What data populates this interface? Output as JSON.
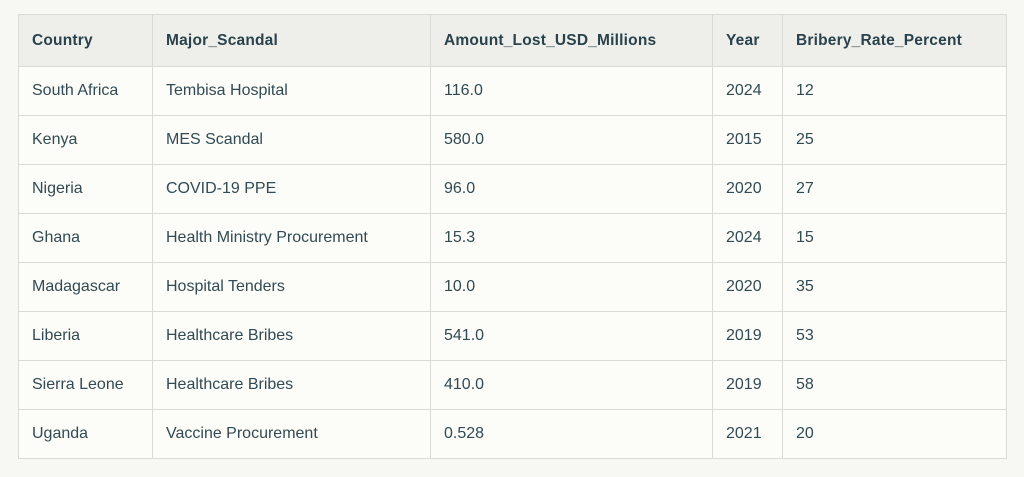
{
  "colors": {
    "page_bg": "#f7f7f3",
    "header_bg": "#eeeeea",
    "row_bg": "#fcfcf8",
    "border": "#dbdbd6",
    "header_text": "#29424c",
    "body_text": "#324a53"
  },
  "chart_data": {
    "type": "table",
    "columns": [
      "Country",
      "Major_Scandal",
      "Amount_Lost_USD_Millions",
      "Year",
      "Bribery_Rate_Percent"
    ],
    "column_keys": [
      "country",
      "scandal",
      "amount",
      "year",
      "bribery"
    ],
    "rows": [
      [
        "South Africa",
        "Tembisa Hospital",
        "116.0",
        "2024",
        "12"
      ],
      [
        "Kenya",
        "MES Scandal",
        "580.0",
        "2015",
        "25"
      ],
      [
        "Nigeria",
        "COVID-19 PPE",
        "96.0",
        "2020",
        "27"
      ],
      [
        "Ghana",
        "Health Ministry Procurement",
        "15.3",
        "2024",
        "15"
      ],
      [
        "Madagascar",
        "Hospital Tenders",
        "10.0",
        "2020",
        "35"
      ],
      [
        "Liberia",
        "Healthcare Bribes",
        "541.0",
        "2019",
        "53"
      ],
      [
        "Sierra Leone",
        "Healthcare Bribes",
        "410.0",
        "2019",
        "58"
      ],
      [
        "Uganda",
        "Vaccine Procurement",
        "0.528",
        "2021",
        "20"
      ]
    ]
  }
}
